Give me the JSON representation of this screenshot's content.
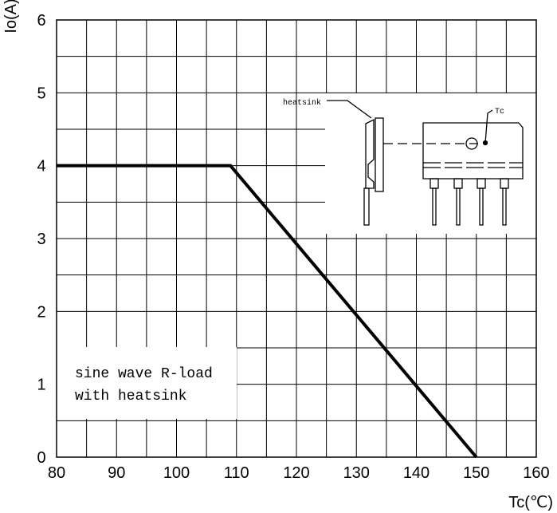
{
  "chart_data": {
    "type": "line",
    "ylabel": "Io(A)",
    "xlabel": "Tc(℃)",
    "xlim": [
      80,
      160
    ],
    "ylim": [
      0,
      6
    ],
    "x_ticks": [
      "80",
      "90",
      "100",
      "110",
      "120",
      "130",
      "140",
      "150",
      "160"
    ],
    "y_ticks": [
      "0",
      "1",
      "2",
      "3",
      "4",
      "5",
      "6"
    ],
    "grid": true,
    "series": [
      {
        "x": [
          80,
          109,
          150
        ],
        "y": [
          4,
          4,
          0
        ]
      }
    ],
    "annotation": {
      "line1": "sine wave R-load",
      "line2": "with heatsink"
    },
    "inset": {
      "heatsink_label": "heatsink",
      "tc_label": "Tc"
    }
  }
}
